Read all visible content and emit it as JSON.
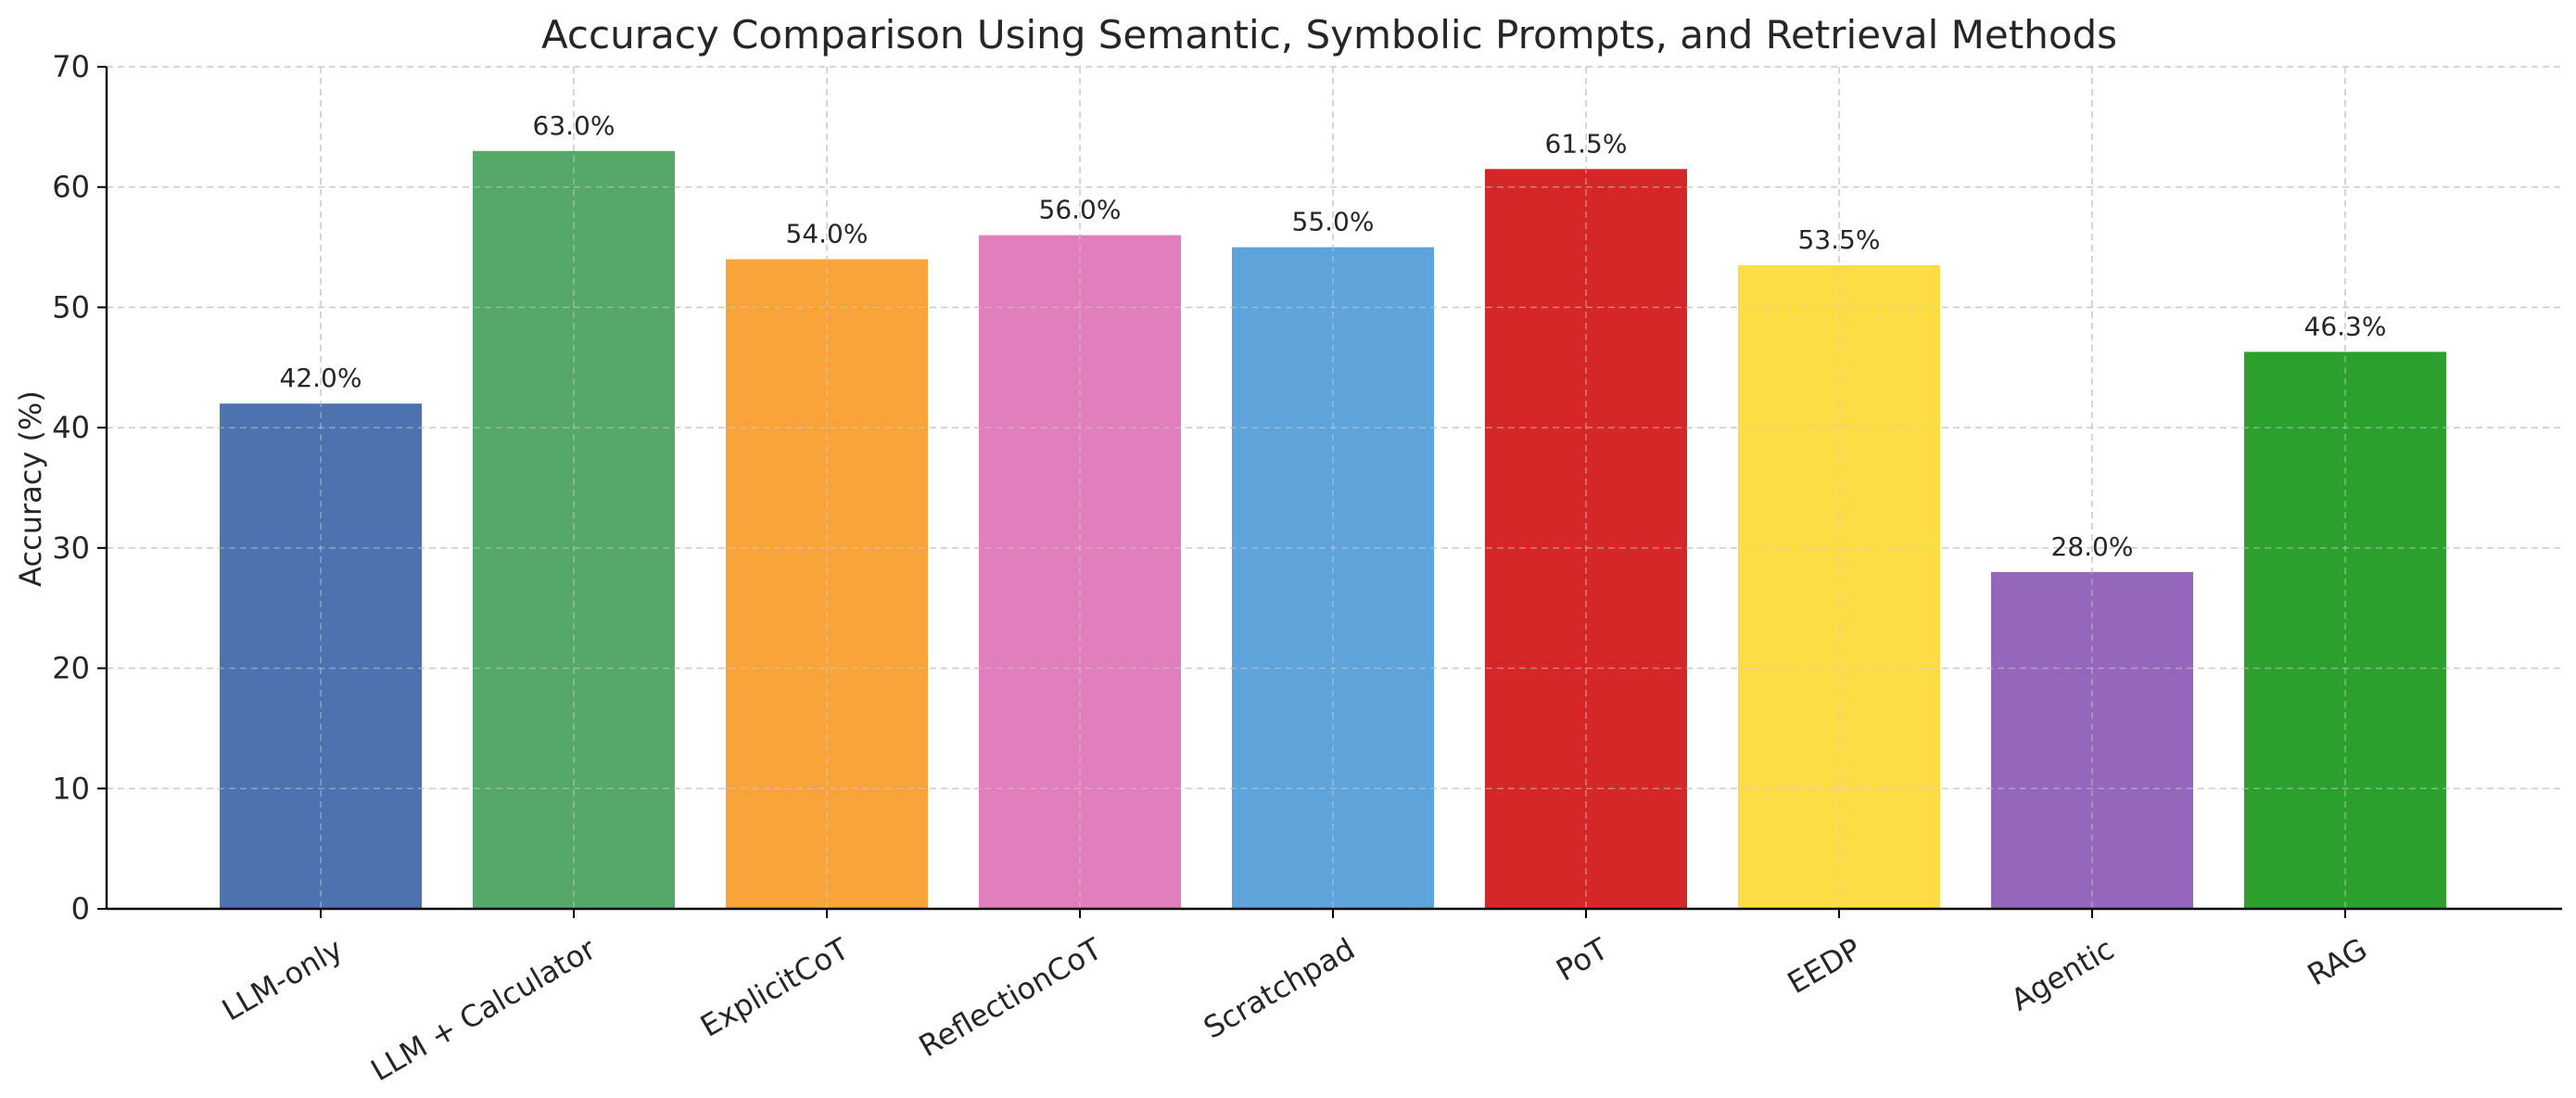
{
  "chart_data": {
    "type": "bar",
    "title": "Accuracy Comparison Using Semantic, Symbolic Prompts, and Retrieval Methods",
    "xlabel": "",
    "ylabel": "Accuracy (%)",
    "ylim": [
      0,
      70
    ],
    "yticks": [
      0,
      10,
      20,
      30,
      40,
      50,
      60,
      70
    ],
    "ytick_labels": [
      "0",
      "10",
      "20",
      "30",
      "40",
      "50",
      "60",
      "70"
    ],
    "grid": true,
    "legend": "none",
    "categories": [
      "LLM-only",
      "LLM + Calculator",
      "ExplicitCoT",
      "ReflectionCoT",
      "Scratchpad",
      "PoT",
      "EEDP",
      "Agentic",
      "RAG"
    ],
    "values": [
      42.0,
      63.0,
      54.0,
      56.0,
      55.0,
      61.5,
      53.5,
      28.0,
      46.3
    ],
    "value_labels": [
      "42.0%",
      "63.0%",
      "54.0%",
      "56.0%",
      "55.0%",
      "61.5%",
      "53.5%",
      "28.0%",
      "46.3%"
    ],
    "colors": [
      "#4c72b0",
      "#55a868",
      "#f9a43a",
      "#e07fbc",
      "#5ea4da",
      "#d62728",
      "#fddd46",
      "#9467bd",
      "#2ca02c"
    ]
  }
}
